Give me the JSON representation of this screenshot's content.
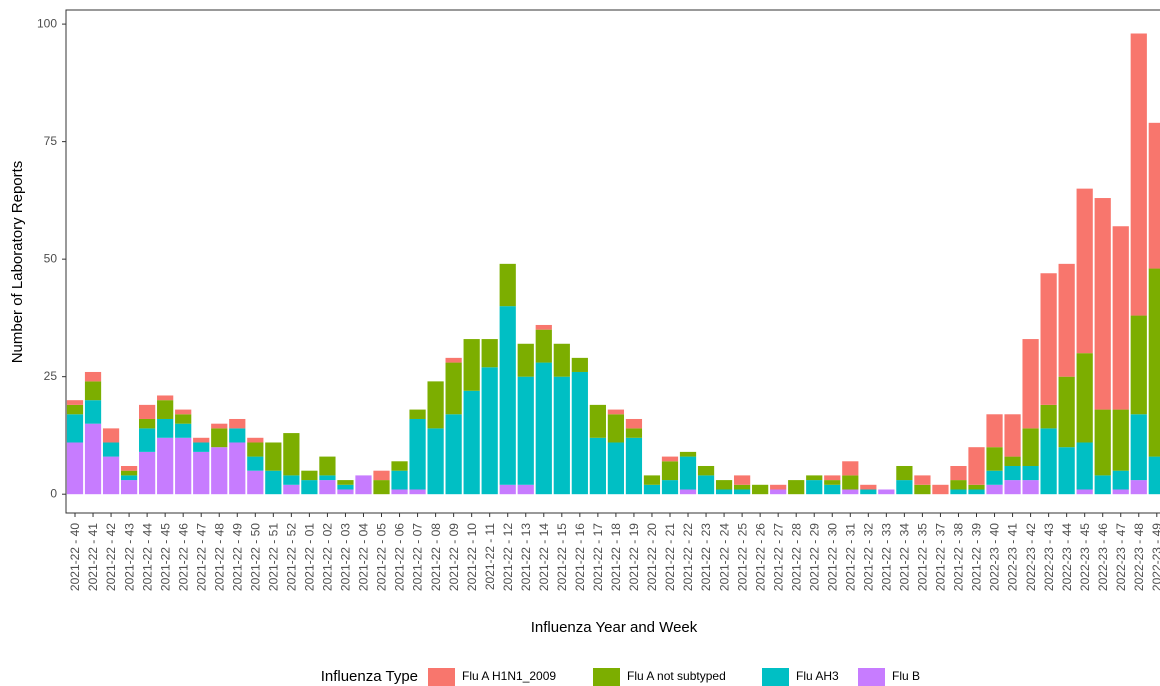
{
  "chart_data": {
    "type": "bar",
    "stacked": true,
    "x_label": "Influenza Year and Week",
    "y_label": "Number of Laboratory Reports",
    "legend_title": "Influenza Type",
    "legend_position": "bottom",
    "categories": [
      "2021-22 - 40",
      "2021-22 - 41",
      "2021-22 - 42",
      "2021-22 - 43",
      "2021-22 - 44",
      "2021-22 - 45",
      "2021-22 - 46",
      "2021-22 - 47",
      "2021-22 - 48",
      "2021-22 - 49",
      "2021-22 - 50",
      "2021-22 - 51",
      "2021-22 - 52",
      "2021-22 - 01",
      "2021-22 - 02",
      "2021-22 - 03",
      "2021-22 - 04",
      "2021-22 - 05",
      "2021-22 - 06",
      "2021-22 - 07",
      "2021-22 - 08",
      "2021-22 - 09",
      "2021-22 - 10",
      "2021-22 - 11",
      "2021-22 - 12",
      "2021-22 - 13",
      "2021-22 - 14",
      "2021-22 - 15",
      "2021-22 - 16",
      "2021-22 - 17",
      "2021-22 - 18",
      "2021-22 - 19",
      "2021-22 - 20",
      "2021-22 - 21",
      "2021-22 - 22",
      "2021-22 - 23",
      "2021-22 - 24",
      "2021-22 - 25",
      "2021-22 - 26",
      "2021-22 - 27",
      "2021-22 - 28",
      "2021-22 - 29",
      "2021-22 - 30",
      "2021-22 - 31",
      "2021-22 - 32",
      "2021-22 - 33",
      "2021-22 - 34",
      "2021-22 - 35",
      "2021-22 - 37",
      "2021-22 - 38",
      "2021-22 - 39",
      "2022-23 - 40",
      "2022-23 - 41",
      "2022-23 - 42",
      "2022-23 - 43",
      "2022-23 - 44",
      "2022-23 - 45",
      "2022-23 - 46",
      "2022-23 - 47",
      "2022-23 - 48",
      "2022-23 - 49"
    ],
    "series": [
      {
        "name": "Flu A H1N1_2009",
        "color": "#F8766D",
        "values": [
          1,
          2,
          3,
          1,
          3,
          1,
          1,
          1,
          1,
          2,
          1,
          0,
          0,
          0,
          0,
          0,
          0,
          2,
          0,
          0,
          0,
          1,
          0,
          0,
          0,
          0,
          1,
          0,
          0,
          0,
          1,
          2,
          0,
          1,
          0,
          0,
          0,
          2,
          0,
          1,
          0,
          0,
          1,
          3,
          1,
          0,
          0,
          2,
          2,
          3,
          8,
          7,
          9,
          19,
          28,
          24,
          35,
          45,
          39,
          60,
          31
        ]
      },
      {
        "name": "Flu A not subtyped",
        "color": "#7CAE00",
        "values": [
          2,
          4,
          0,
          1,
          2,
          4,
          2,
          0,
          4,
          0,
          3,
          6,
          9,
          2,
          4,
          1,
          0,
          3,
          2,
          2,
          10,
          11,
          11,
          6,
          9,
          7,
          7,
          7,
          3,
          7,
          6,
          2,
          2,
          4,
          1,
          2,
          2,
          1,
          2,
          0,
          3,
          1,
          1,
          3,
          0,
          0,
          3,
          2,
          0,
          2,
          1,
          5,
          2,
          8,
          5,
          15,
          19,
          14,
          13,
          21,
          40
        ]
      },
      {
        "name": "Flu AH3",
        "color": "#00BFC4",
        "values": [
          6,
          5,
          3,
          1,
          5,
          4,
          3,
          2,
          0,
          3,
          3,
          5,
          2,
          3,
          1,
          1,
          0,
          0,
          4,
          15,
          14,
          17,
          22,
          27,
          38,
          23,
          28,
          25,
          26,
          12,
          11,
          12,
          2,
          3,
          7,
          4,
          1,
          1,
          0,
          0,
          0,
          3,
          2,
          0,
          1,
          0,
          3,
          0,
          0,
          1,
          1,
          3,
          3,
          3,
          14,
          10,
          10,
          4,
          4,
          14,
          8
        ]
      },
      {
        "name": "Flu B",
        "color": "#C77CFF",
        "values": [
          11,
          15,
          8,
          3,
          9,
          12,
          12,
          9,
          10,
          11,
          5,
          0,
          2,
          0,
          3,
          1,
          4,
          0,
          1,
          1,
          0,
          0,
          0,
          0,
          2,
          2,
          0,
          0,
          0,
          0,
          0,
          0,
          0,
          0,
          1,
          0,
          0,
          0,
          0,
          1,
          0,
          0,
          0,
          1,
          0,
          1,
          0,
          0,
          0,
          0,
          0,
          2,
          3,
          3,
          0,
          0,
          1,
          0,
          1,
          3,
          0
        ]
      }
    ],
    "ylim": [
      -4,
      103
    ],
    "yticks": [
      0,
      25,
      50,
      75,
      100
    ],
    "grid": false
  }
}
